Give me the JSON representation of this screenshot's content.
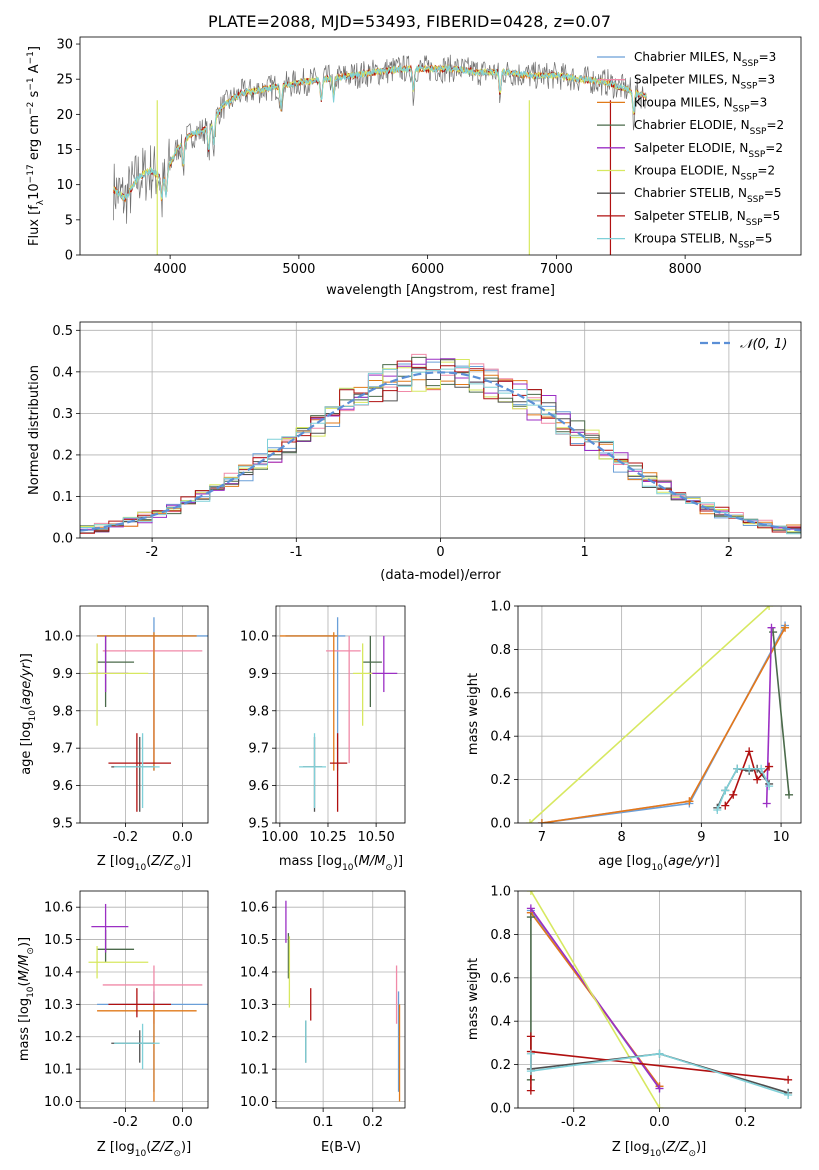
{
  "figure": {
    "title": "PLATE=2088, MJD=53493, FIBERID=0428, z=0.07"
  },
  "colors": {
    "Chabrier MILES": "#6a9fd8",
    "Salpeter MILES": "#f08aa8",
    "Kroupa MILES": "#e07a1a",
    "Chabrier ELODIE": "#4a6a4a",
    "Salpeter ELODIE": "#9b2fc4",
    "Kroupa ELODIE": "#d7e860",
    "Chabrier STELIB": "#505050",
    "Salpeter STELIB": "#b01010",
    "Kroupa STELIB": "#7fd0d8",
    "normal": "#5b8fd6",
    "grid": "#b0b0b0"
  },
  "chart_data": [
    {
      "id": "spectrum",
      "type": "line",
      "xlabel": "wavelength [Angstrom, rest frame]",
      "ylabel": "Flux [f_λ 10^-17 erg cm^-2 s^-1 A^-1]",
      "xlim": [
        3300,
        8900
      ],
      "ylim": [
        0,
        31
      ],
      "xticks": [
        4000,
        5000,
        6000,
        7000,
        8000
      ],
      "yticks": [
        0,
        5,
        10,
        15,
        20,
        25,
        30
      ],
      "grid": false,
      "legend_placement": "upper right",
      "legend": [
        "Chabrier MILES, N_SSP=3",
        "Salpeter MILES, N_SSP=3",
        "Kroupa MILES, N_SSP=3",
        "Chabrier ELODIE, N_SSP=2",
        "Salpeter ELODIE, N_SSP=2",
        "Kroupa ELODIE, N_SSP=2",
        "Chabrier STELIB, N_SSP=5",
        "Salpeter STELIB, N_SSP=5",
        "Kroupa STELIB, N_SSP=5"
      ],
      "continuum": {
        "wavelength": [
          3550,
          3650,
          3750,
          3850,
          3950,
          4050,
          4150,
          4300,
          4400,
          4550,
          4700,
          4850,
          5000,
          5200,
          5400,
          5600,
          5800,
          6000,
          6200,
          6400,
          6600,
          6800,
          7000,
          7200,
          7400,
          7550,
          7700
        ],
        "flux": [
          9.5,
          8.0,
          11.0,
          12.0,
          11.0,
          15.0,
          17.0,
          18.0,
          21.0,
          23.0,
          23.5,
          24.0,
          24.5,
          25.0,
          25.5,
          26.0,
          26.5,
          26.5,
          26.5,
          26.0,
          26.0,
          25.5,
          25.5,
          25.0,
          24.5,
          23.5,
          22.5
        ]
      },
      "observed_noise_amplitude": 2.0
    },
    {
      "id": "residuals",
      "type": "step",
      "xlabel": "(data-model)/error",
      "ylabel": "Normed distribution",
      "xlim": [
        -2.5,
        2.5
      ],
      "ylim": [
        0,
        0.52
      ],
      "xticks": [
        -2,
        -1,
        0,
        1,
        2
      ],
      "yticks": [
        0.0,
        0.1,
        0.2,
        0.3,
        0.4,
        0.5
      ],
      "grid": true,
      "legend_placement": "upper right",
      "legend": [
        "𝒩(0, 1)"
      ],
      "bin_width": 0.1,
      "reference_curve": "standard normal"
    },
    {
      "id": "age-vs-Z",
      "type": "errorbar",
      "xlabel": "Z [log10(Z/Z⊙)]",
      "ylabel": "age  [log10(age/yr)]",
      "xlim": [
        -0.36,
        0.09
      ],
      "ylim": [
        9.5,
        10.08
      ],
      "xticks": [
        -0.2,
        0.0
      ],
      "yticks": [
        9.5,
        9.6,
        9.7,
        9.8,
        9.9,
        10.0
      ],
      "grid": true,
      "points": [
        {
          "model": "Chabrier MILES",
          "x": -0.1,
          "xerr": [
            0.2,
            0.2
          ],
          "y": 10.0,
          "yerr": [
            0.36,
            0.05
          ]
        },
        {
          "model": "Salpeter MILES",
          "x": -0.1,
          "xerr": [
            0.18,
            0.17
          ],
          "y": 9.96,
          "yerr": [
            0.3,
            0.04
          ]
        },
        {
          "model": "Kroupa MILES",
          "x": -0.1,
          "xerr": [
            0.2,
            0.15
          ],
          "y": 10.0,
          "yerr": [
            0.36,
            0.01
          ]
        },
        {
          "model": "Chabrier ELODIE",
          "x": -0.27,
          "xerr": [
            0.03,
            0.1
          ],
          "y": 9.93,
          "yerr": [
            0.12,
            0.07
          ]
        },
        {
          "model": "Salpeter ELODIE",
          "x": -0.27,
          "xerr": [
            0.05,
            0.08
          ],
          "y": 9.9,
          "yerr": [
            0.05,
            0.1
          ]
        },
        {
          "model": "Kroupa ELODIE",
          "x": -0.3,
          "xerr": [
            0.03,
            0.18
          ],
          "y": 9.9,
          "yerr": [
            0.14,
            0.08
          ]
        },
        {
          "model": "Chabrier STELIB",
          "x": -0.15,
          "xerr": [
            0.1,
            0.05
          ],
          "y": 9.65,
          "yerr": [
            0.12,
            0.08
          ]
        },
        {
          "model": "Salpeter STELIB",
          "x": -0.16,
          "xerr": [
            0.1,
            0.12
          ],
          "y": 9.66,
          "yerr": [
            0.13,
            0.08
          ]
        },
        {
          "model": "Kroupa STELIB",
          "x": -0.14,
          "xerr": [
            0.1,
            0.06
          ],
          "y": 9.65,
          "yerr": [
            0.11,
            0.09
          ]
        }
      ]
    },
    {
      "id": "age-vs-mass",
      "type": "errorbar",
      "xlabel": "mass [log10(M/M⊙)]",
      "ylabel": "",
      "xlim": [
        9.98,
        10.65
      ],
      "ylim": [
        9.5,
        10.08
      ],
      "xticks": [
        10.0,
        10.25,
        10.5
      ],
      "yticks": [
        9.5,
        9.6,
        9.7,
        9.8,
        9.9,
        10.0
      ],
      "grid": true,
      "points": [
        {
          "model": "Chabrier MILES",
          "x": 10.3,
          "xerr": [
            0.27,
            0.04
          ],
          "y": 10.0,
          "yerr": [
            0.36,
            0.05
          ]
        },
        {
          "model": "Salpeter MILES",
          "x": 10.36,
          "xerr": [
            0.12,
            0.06
          ],
          "y": 9.96,
          "yerr": [
            0.3,
            0.04
          ]
        },
        {
          "model": "Kroupa MILES",
          "x": 10.28,
          "xerr": [
            0.28,
            0.02
          ],
          "y": 10.0,
          "yerr": [
            0.36,
            0.01
          ]
        },
        {
          "model": "Chabrier ELODIE",
          "x": 10.47,
          "xerr": [
            0.04,
            0.06
          ],
          "y": 9.93,
          "yerr": [
            0.12,
            0.07
          ]
        },
        {
          "model": "Salpeter ELODIE",
          "x": 10.54,
          "xerr": [
            0.08,
            0.07
          ],
          "y": 9.9,
          "yerr": [
            0.05,
            0.1
          ]
        },
        {
          "model": "Kroupa ELODIE",
          "x": 10.43,
          "xerr": [
            0.05,
            0.05
          ],
          "y": 9.9,
          "yerr": [
            0.14,
            0.08
          ]
        },
        {
          "model": "Chabrier STELIB",
          "x": 10.18,
          "xerr": [
            0.06,
            0.04
          ],
          "y": 9.65,
          "yerr": [
            0.12,
            0.08
          ]
        },
        {
          "model": "Salpeter STELIB",
          "x": 10.3,
          "xerr": [
            0.04,
            0.05
          ],
          "y": 9.66,
          "yerr": [
            0.13,
            0.08
          ]
        },
        {
          "model": "Kroupa STELIB",
          "x": 10.18,
          "xerr": [
            0.08,
            0.06
          ],
          "y": 9.65,
          "yerr": [
            0.11,
            0.09
          ]
        }
      ]
    },
    {
      "id": "massweight-vs-age",
      "type": "line",
      "xlabel": "age  [log10(age/yr)]",
      "ylabel": "mass weight",
      "xlim": [
        6.7,
        10.25
      ],
      "ylim": [
        0,
        1.0
      ],
      "xticks": [
        7,
        8,
        9,
        10
      ],
      "yticks": [
        0.0,
        0.2,
        0.4,
        0.6,
        0.8,
        1.0
      ],
      "grid": true,
      "series": [
        {
          "model": "Chabrier MILES",
          "x": [
            7.0,
            8.85,
            10.05
          ],
          "y": [
            0.0,
            0.09,
            0.91
          ]
        },
        {
          "model": "Salpeter MILES",
          "x": [
            7.0,
            8.85,
            10.05
          ],
          "y": [
            0.0,
            0.1,
            0.9
          ]
        },
        {
          "model": "Kroupa MILES",
          "x": [
            7.0,
            8.85,
            10.05
          ],
          "y": [
            0.0,
            0.1,
            0.9
          ]
        },
        {
          "model": "Chabrier ELODIE",
          "x": [
            9.9,
            10.1
          ],
          "y": [
            0.88,
            0.13
          ]
        },
        {
          "model": "Salpeter ELODIE",
          "x": [
            9.82,
            9.88
          ],
          "y": [
            0.09,
            0.9
          ]
        },
        {
          "model": "Kroupa ELODIE",
          "x": [
            6.85,
            9.85
          ],
          "y": [
            0.0,
            1.0
          ]
        },
        {
          "model": "Chabrier STELIB",
          "x": [
            9.2,
            9.3,
            9.45,
            9.6,
            9.7,
            9.85
          ],
          "y": [
            0.07,
            0.15,
            0.25,
            0.24,
            0.25,
            0.18
          ]
        },
        {
          "model": "Salpeter STELIB",
          "x": [
            9.3,
            9.4,
            9.6,
            9.7,
            9.85
          ],
          "y": [
            0.08,
            0.13,
            0.33,
            0.2,
            0.26
          ]
        },
        {
          "model": "Kroupa STELIB",
          "x": [
            9.2,
            9.3,
            9.45,
            9.6,
            9.75,
            9.85
          ],
          "y": [
            0.06,
            0.15,
            0.25,
            0.25,
            0.25,
            0.17
          ]
        }
      ]
    },
    {
      "id": "mass-vs-Z",
      "type": "errorbar",
      "xlabel": "Z [log10(Z/Z⊙)]",
      "ylabel": "mass [log10(M/M⊙)]",
      "xlim": [
        -0.36,
        0.09
      ],
      "ylim": [
        9.98,
        10.65
      ],
      "xticks": [
        -0.2,
        0.0
      ],
      "yticks": [
        10.0,
        10.1,
        10.2,
        10.3,
        10.4,
        10.5,
        10.6
      ],
      "grid": true,
      "points": [
        {
          "model": "Chabrier MILES",
          "x": -0.1,
          "xerr": [
            0.2,
            0.2
          ],
          "y": 10.3,
          "yerr": [
            0.27,
            0.04
          ]
        },
        {
          "model": "Salpeter MILES",
          "x": -0.1,
          "xerr": [
            0.18,
            0.17
          ],
          "y": 10.36,
          "yerr": [
            0.12,
            0.06
          ]
        },
        {
          "model": "Kroupa MILES",
          "x": -0.1,
          "xerr": [
            0.2,
            0.15
          ],
          "y": 10.28,
          "yerr": [
            0.28,
            0.02
          ]
        },
        {
          "model": "Chabrier ELODIE",
          "x": -0.27,
          "xerr": [
            0.03,
            0.1
          ],
          "y": 10.47,
          "yerr": [
            0.04,
            0.06
          ]
        },
        {
          "model": "Salpeter ELODIE",
          "x": -0.27,
          "xerr": [
            0.05,
            0.08
          ],
          "y": 10.54,
          "yerr": [
            0.08,
            0.07
          ]
        },
        {
          "model": "Kroupa ELODIE",
          "x": -0.3,
          "xerr": [
            0.03,
            0.18
          ],
          "y": 10.43,
          "yerr": [
            0.05,
            0.05
          ]
        },
        {
          "model": "Chabrier STELIB",
          "x": -0.15,
          "xerr": [
            0.1,
            0.05
          ],
          "y": 10.18,
          "yerr": [
            0.06,
            0.04
          ]
        },
        {
          "model": "Salpeter STELIB",
          "x": -0.16,
          "xerr": [
            0.1,
            0.12
          ],
          "y": 10.3,
          "yerr": [
            0.04,
            0.05
          ]
        },
        {
          "model": "Kroupa STELIB",
          "x": -0.14,
          "xerr": [
            0.1,
            0.06
          ],
          "y": 10.18,
          "yerr": [
            0.08,
            0.06
          ]
        }
      ]
    },
    {
      "id": "mass-vs-EBV",
      "type": "errorbar",
      "xlabel": "E(B-V)",
      "ylabel": "",
      "xlim": [
        0.005,
        0.265
      ],
      "ylim": [
        9.98,
        10.65
      ],
      "xticks": [
        0.1,
        0.2
      ],
      "yticks": [
        10.0,
        10.1,
        10.2,
        10.3,
        10.4,
        10.5,
        10.6
      ],
      "grid": true,
      "points": [
        {
          "model": "Chabrier MILES",
          "x": 0.252,
          "y": 10.3,
          "yerr": [
            0.27,
            0.04
          ]
        },
        {
          "model": "Salpeter MILES",
          "x": 0.248,
          "y": 10.36,
          "yerr": [
            0.12,
            0.06
          ]
        },
        {
          "model": "Kroupa MILES",
          "x": 0.254,
          "y": 10.28,
          "yerr": [
            0.28,
            0.02
          ]
        },
        {
          "model": "Chabrier ELODIE",
          "x": 0.03,
          "y": 10.47,
          "yerr": [
            0.09,
            0.05
          ]
        },
        {
          "model": "Salpeter ELODIE",
          "x": 0.025,
          "y": 10.54,
          "yerr": [
            0.05,
            0.08
          ]
        },
        {
          "model": "Kroupa ELODIE",
          "x": 0.032,
          "y": 10.43,
          "yerr": [
            0.14,
            0.08
          ]
        },
        {
          "model": "Chabrier STELIB",
          "x": 0.065,
          "y": 10.18,
          "yerr": [
            0.06,
            0.07
          ]
        },
        {
          "model": "Salpeter STELIB",
          "x": 0.075,
          "y": 10.3,
          "yerr": [
            0.05,
            0.05
          ]
        },
        {
          "model": "Kroupa STELIB",
          "x": 0.065,
          "y": 10.18,
          "yerr": [
            0.06,
            0.07
          ]
        }
      ]
    },
    {
      "id": "massweight-vs-Z",
      "type": "line",
      "xlabel": "Z [log10(Z/Z⊙)]",
      "ylabel": "mass weight",
      "xlim": [
        -0.33,
        0.33
      ],
      "ylim": [
        0,
        1.0
      ],
      "xticks": [
        -0.2,
        0.0,
        0.2
      ],
      "yticks": [
        0.0,
        0.2,
        0.4,
        0.6,
        0.8,
        1.0
      ],
      "grid": true,
      "series": [
        {
          "model": "Chabrier MILES",
          "x": [
            -0.3,
            0.0
          ],
          "y": [
            0.91,
            0.09
          ]
        },
        {
          "model": "Salpeter MILES",
          "x": [
            -0.3,
            0.0
          ],
          "y": [
            0.9,
            0.1
          ]
        },
        {
          "model": "Kroupa MILES",
          "x": [
            -0.3,
            0.0
          ],
          "y": [
            0.9,
            0.1
          ]
        },
        {
          "model": "Chabrier ELODIE",
          "x": [
            -0.3,
            -0.3
          ],
          "y": [
            0.13,
            0.88
          ]
        },
        {
          "model": "Salpeter ELODIE",
          "x": [
            -0.3,
            0.0
          ],
          "y": [
            0.92,
            0.09
          ]
        },
        {
          "model": "Kroupa ELODIE",
          "x": [
            -0.3,
            0.0
          ],
          "y": [
            1.0,
            0.0
          ]
        },
        {
          "model": "Chabrier STELIB",
          "x": [
            -0.3,
            0.0,
            0.3
          ],
          "y": [
            0.18,
            0.25,
            0.07
          ]
        },
        {
          "model": "Salpeter STELIB",
          "x": [
            -0.3,
            -0.3,
            -0.3,
            0.3
          ],
          "y": [
            0.08,
            0.33,
            0.26,
            0.13
          ]
        },
        {
          "model": "Kroupa STELIB",
          "x": [
            -0.3,
            -0.3,
            0.0,
            0.3
          ],
          "y": [
            0.25,
            0.17,
            0.25,
            0.06
          ]
        }
      ]
    }
  ]
}
